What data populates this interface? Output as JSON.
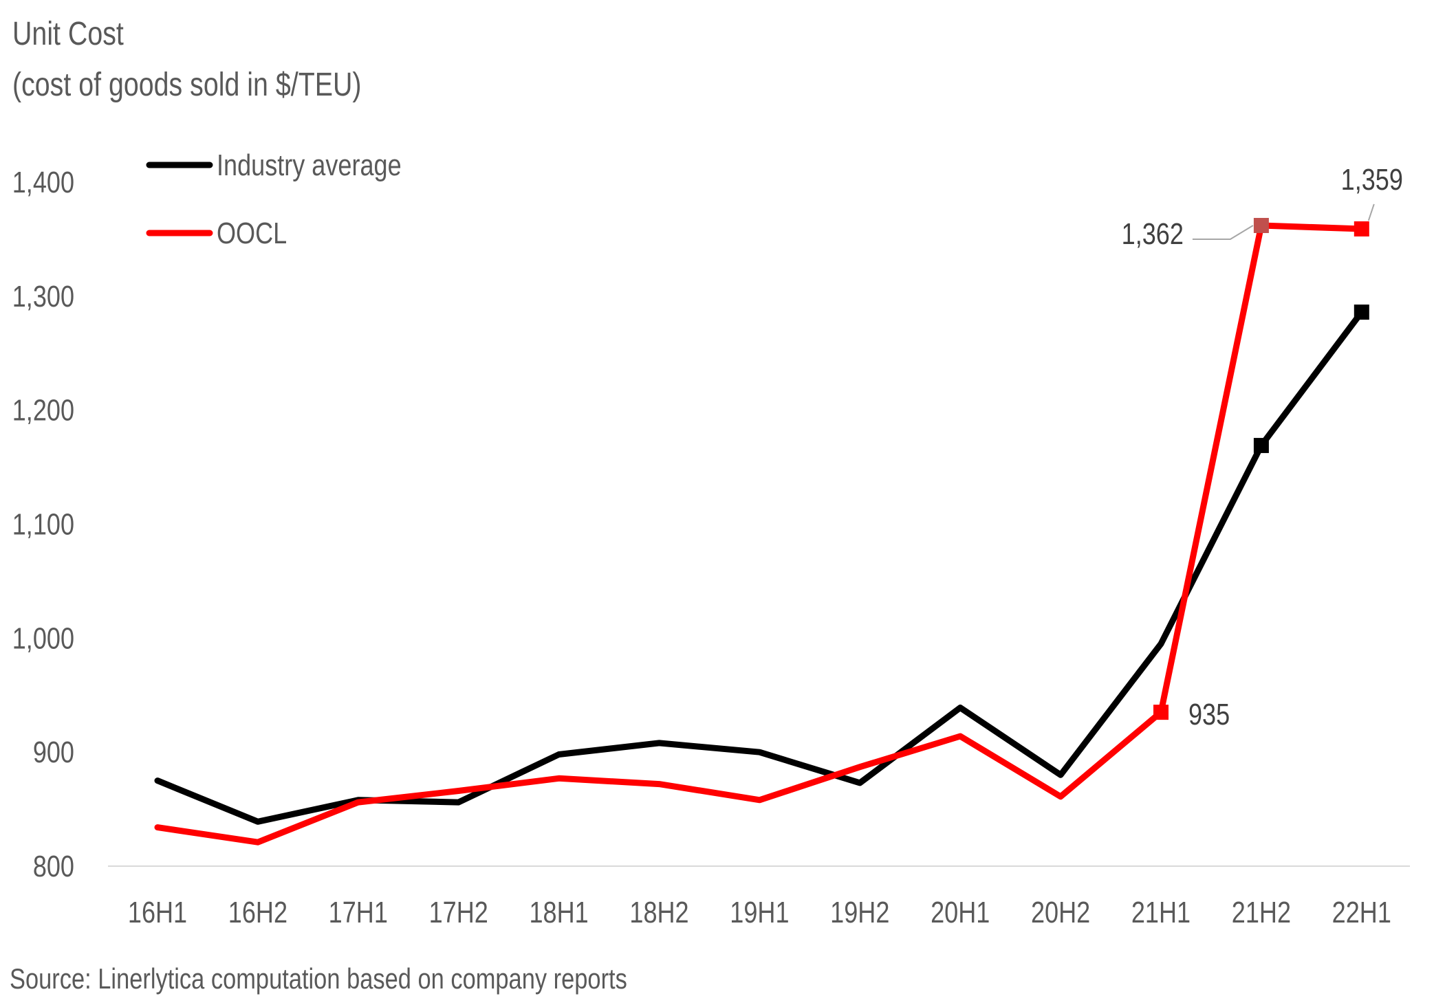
{
  "title": "Unit Cost",
  "subtitle": "(cost of goods sold in $/TEU)",
  "source": "Source: Linerlytica computation based on company reports",
  "chart_data": {
    "type": "line",
    "title": "Unit Cost",
    "subtitle": "(cost of goods sold in $/TEU)",
    "xlabel": "",
    "ylabel": "",
    "categories": [
      "16H1",
      "16H2",
      "17H1",
      "17H2",
      "18H1",
      "18H2",
      "19H1",
      "19H2",
      "20H1",
      "20H2",
      "21H1",
      "21H2",
      "22H1"
    ],
    "ylim": [
      800,
      1400
    ],
    "yticks": [
      800,
      900,
      1000,
      1100,
      1200,
      1300,
      1400
    ],
    "ytick_labels": [
      "800",
      "900",
      "1,000",
      "1,100",
      "1,200",
      "1,300",
      "1,400"
    ],
    "grid": false,
    "legend_position": "top-left",
    "series": [
      {
        "name": "Industry average",
        "color": "#000000",
        "values": [
          875,
          839,
          858,
          856,
          898,
          908,
          900,
          873,
          939,
          880,
          995,
          1169,
          1286
        ],
        "markers": [
          11,
          12
        ]
      },
      {
        "name": "OOCL",
        "color": "#ff0000",
        "values": [
          834,
          821,
          856,
          866,
          877,
          872,
          858,
          887,
          914,
          861,
          935,
          1362,
          1359
        ],
        "markers": [
          10,
          11,
          12
        ]
      }
    ],
    "annotations": [
      {
        "series": 1,
        "index": 10,
        "text": "935"
      },
      {
        "series": 1,
        "index": 11,
        "text": "1,362"
      },
      {
        "series": 1,
        "index": 12,
        "text": "1,359"
      }
    ]
  }
}
